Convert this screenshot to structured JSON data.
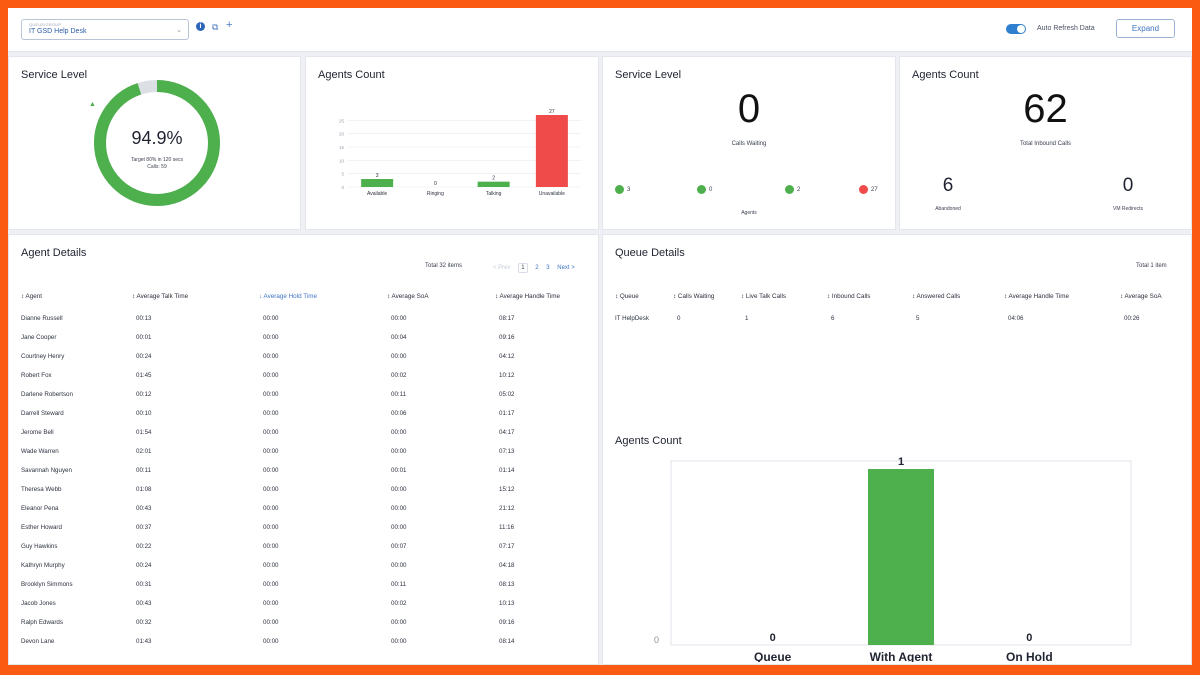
{
  "topbar": {
    "queue_caption": "QUEUE/GROUP",
    "queue_value": "IT GSD Help Desk",
    "auto_refresh_label": "Auto Refresh Data",
    "expand_label": "Expand"
  },
  "service_level": {
    "title": "Service Level",
    "percent_value": 94.9,
    "percent": "94.9%",
    "target": "Target 80% in 120 secs",
    "calls": "Calls: 59"
  },
  "agents_count_1": {
    "title": "Agents Count",
    "chart_data": {
      "type": "bar",
      "categories": [
        "Available",
        "Ringing",
        "Talking",
        "Unavailable"
      ],
      "values": [
        3,
        0,
        2,
        27
      ],
      "colors": [
        "#4db04d",
        "#4db04d",
        "#4db04d",
        "#f04b4b"
      ],
      "y_ticks": [
        0,
        5,
        10,
        15,
        20,
        25
      ],
      "ylim": [
        0,
        27
      ]
    }
  },
  "service_level_2": {
    "title": "Service Level",
    "value": "0",
    "label": "Calls Waiting",
    "agents_label": "Agents",
    "dots": [
      {
        "value": "3",
        "color": "#4db04d"
      },
      {
        "value": "0",
        "color": "#4db04d"
      },
      {
        "value": "2",
        "color": "#4db04d"
      },
      {
        "value": "27",
        "color": "#f04b4b"
      }
    ]
  },
  "agents_count_2": {
    "title": "Agents Count",
    "value": "62",
    "label": "Total Inbound Calls",
    "abandoned_value": "6",
    "abandoned_label": "Abandoned",
    "vm_value": "0",
    "vm_label": "VM Redirects"
  },
  "agent_details": {
    "title": "Agent Details",
    "total": "Total 32 items",
    "pager": {
      "prev": "< Prev",
      "pages": [
        "1",
        "2",
        "3"
      ],
      "next": "Next >"
    },
    "columns": [
      "Agent",
      "Average Talk Time",
      "Average Hold Time",
      "Average SoA",
      "Average Handle Time"
    ],
    "rows": [
      [
        "Dianne Russell",
        "00:13",
        "00:00",
        "00:00",
        "08:17"
      ],
      [
        "Jane Cooper",
        "00:01",
        "00:00",
        "00:04",
        "09:16"
      ],
      [
        "Courtney Henry",
        "00:24",
        "00:00",
        "00:00",
        "04:12"
      ],
      [
        "Robert Fox",
        "01:45",
        "00:00",
        "00:02",
        "10:12"
      ],
      [
        "Darlene Robertson",
        "00:12",
        "00:00",
        "00:11",
        "05:02"
      ],
      [
        "Darrell Steward",
        "00:10",
        "00:00",
        "00:06",
        "01:17"
      ],
      [
        "Jerome Bell",
        "01:54",
        "00:00",
        "00:00",
        "04:17"
      ],
      [
        "Wade Warren",
        "02:01",
        "00:00",
        "00:00",
        "07:13"
      ],
      [
        "Savannah Nguyen",
        "00:11",
        "00:00",
        "00:01",
        "01:14"
      ],
      [
        "Theresa Webb",
        "01:08",
        "00:00",
        "00:00",
        "15:12"
      ],
      [
        "Eleanor Pena",
        "00:43",
        "00:00",
        "00:00",
        "21:12"
      ],
      [
        "Esther Howard",
        "00:37",
        "00:00",
        "00:00",
        "11:16"
      ],
      [
        "Guy Hawkins",
        "00:22",
        "00:00",
        "00:07",
        "07:17"
      ],
      [
        "Kathryn Murphy",
        "00:24",
        "00:00",
        "00:00",
        "04:18"
      ],
      [
        "Brooklyn Simmons",
        "00:31",
        "00:00",
        "00:11",
        "08:13"
      ],
      [
        "Jacob Jones",
        "00:43",
        "00:00",
        "00:02",
        "10:13"
      ],
      [
        "Ralph Edwards",
        "00:32",
        "00:00",
        "00:00",
        "09:16"
      ],
      [
        "Devon Lane",
        "01:43",
        "00:00",
        "00:00",
        "08:14"
      ]
    ]
  },
  "queue_details": {
    "title": "Queue Details",
    "total": "Total 1 item",
    "columns": [
      "Queue",
      "Calls Waiting",
      "Live Talk Calls",
      "Inbound Calls",
      "Answered Calls",
      "Average Handle Time",
      "Average SoA"
    ],
    "rows": [
      [
        "IT HelpDesk",
        "0",
        "1",
        "6",
        "5",
        "04:06",
        "00:26"
      ]
    ]
  },
  "agents_count_3": {
    "title": "Agents Count",
    "chart_data": {
      "type": "bar",
      "categories": [
        "Queue",
        "With Agent",
        "On Hold"
      ],
      "values": [
        0,
        1,
        0
      ],
      "color": "#4db04d",
      "y_ticks": [
        0
      ],
      "ylim": [
        0,
        1
      ]
    }
  }
}
